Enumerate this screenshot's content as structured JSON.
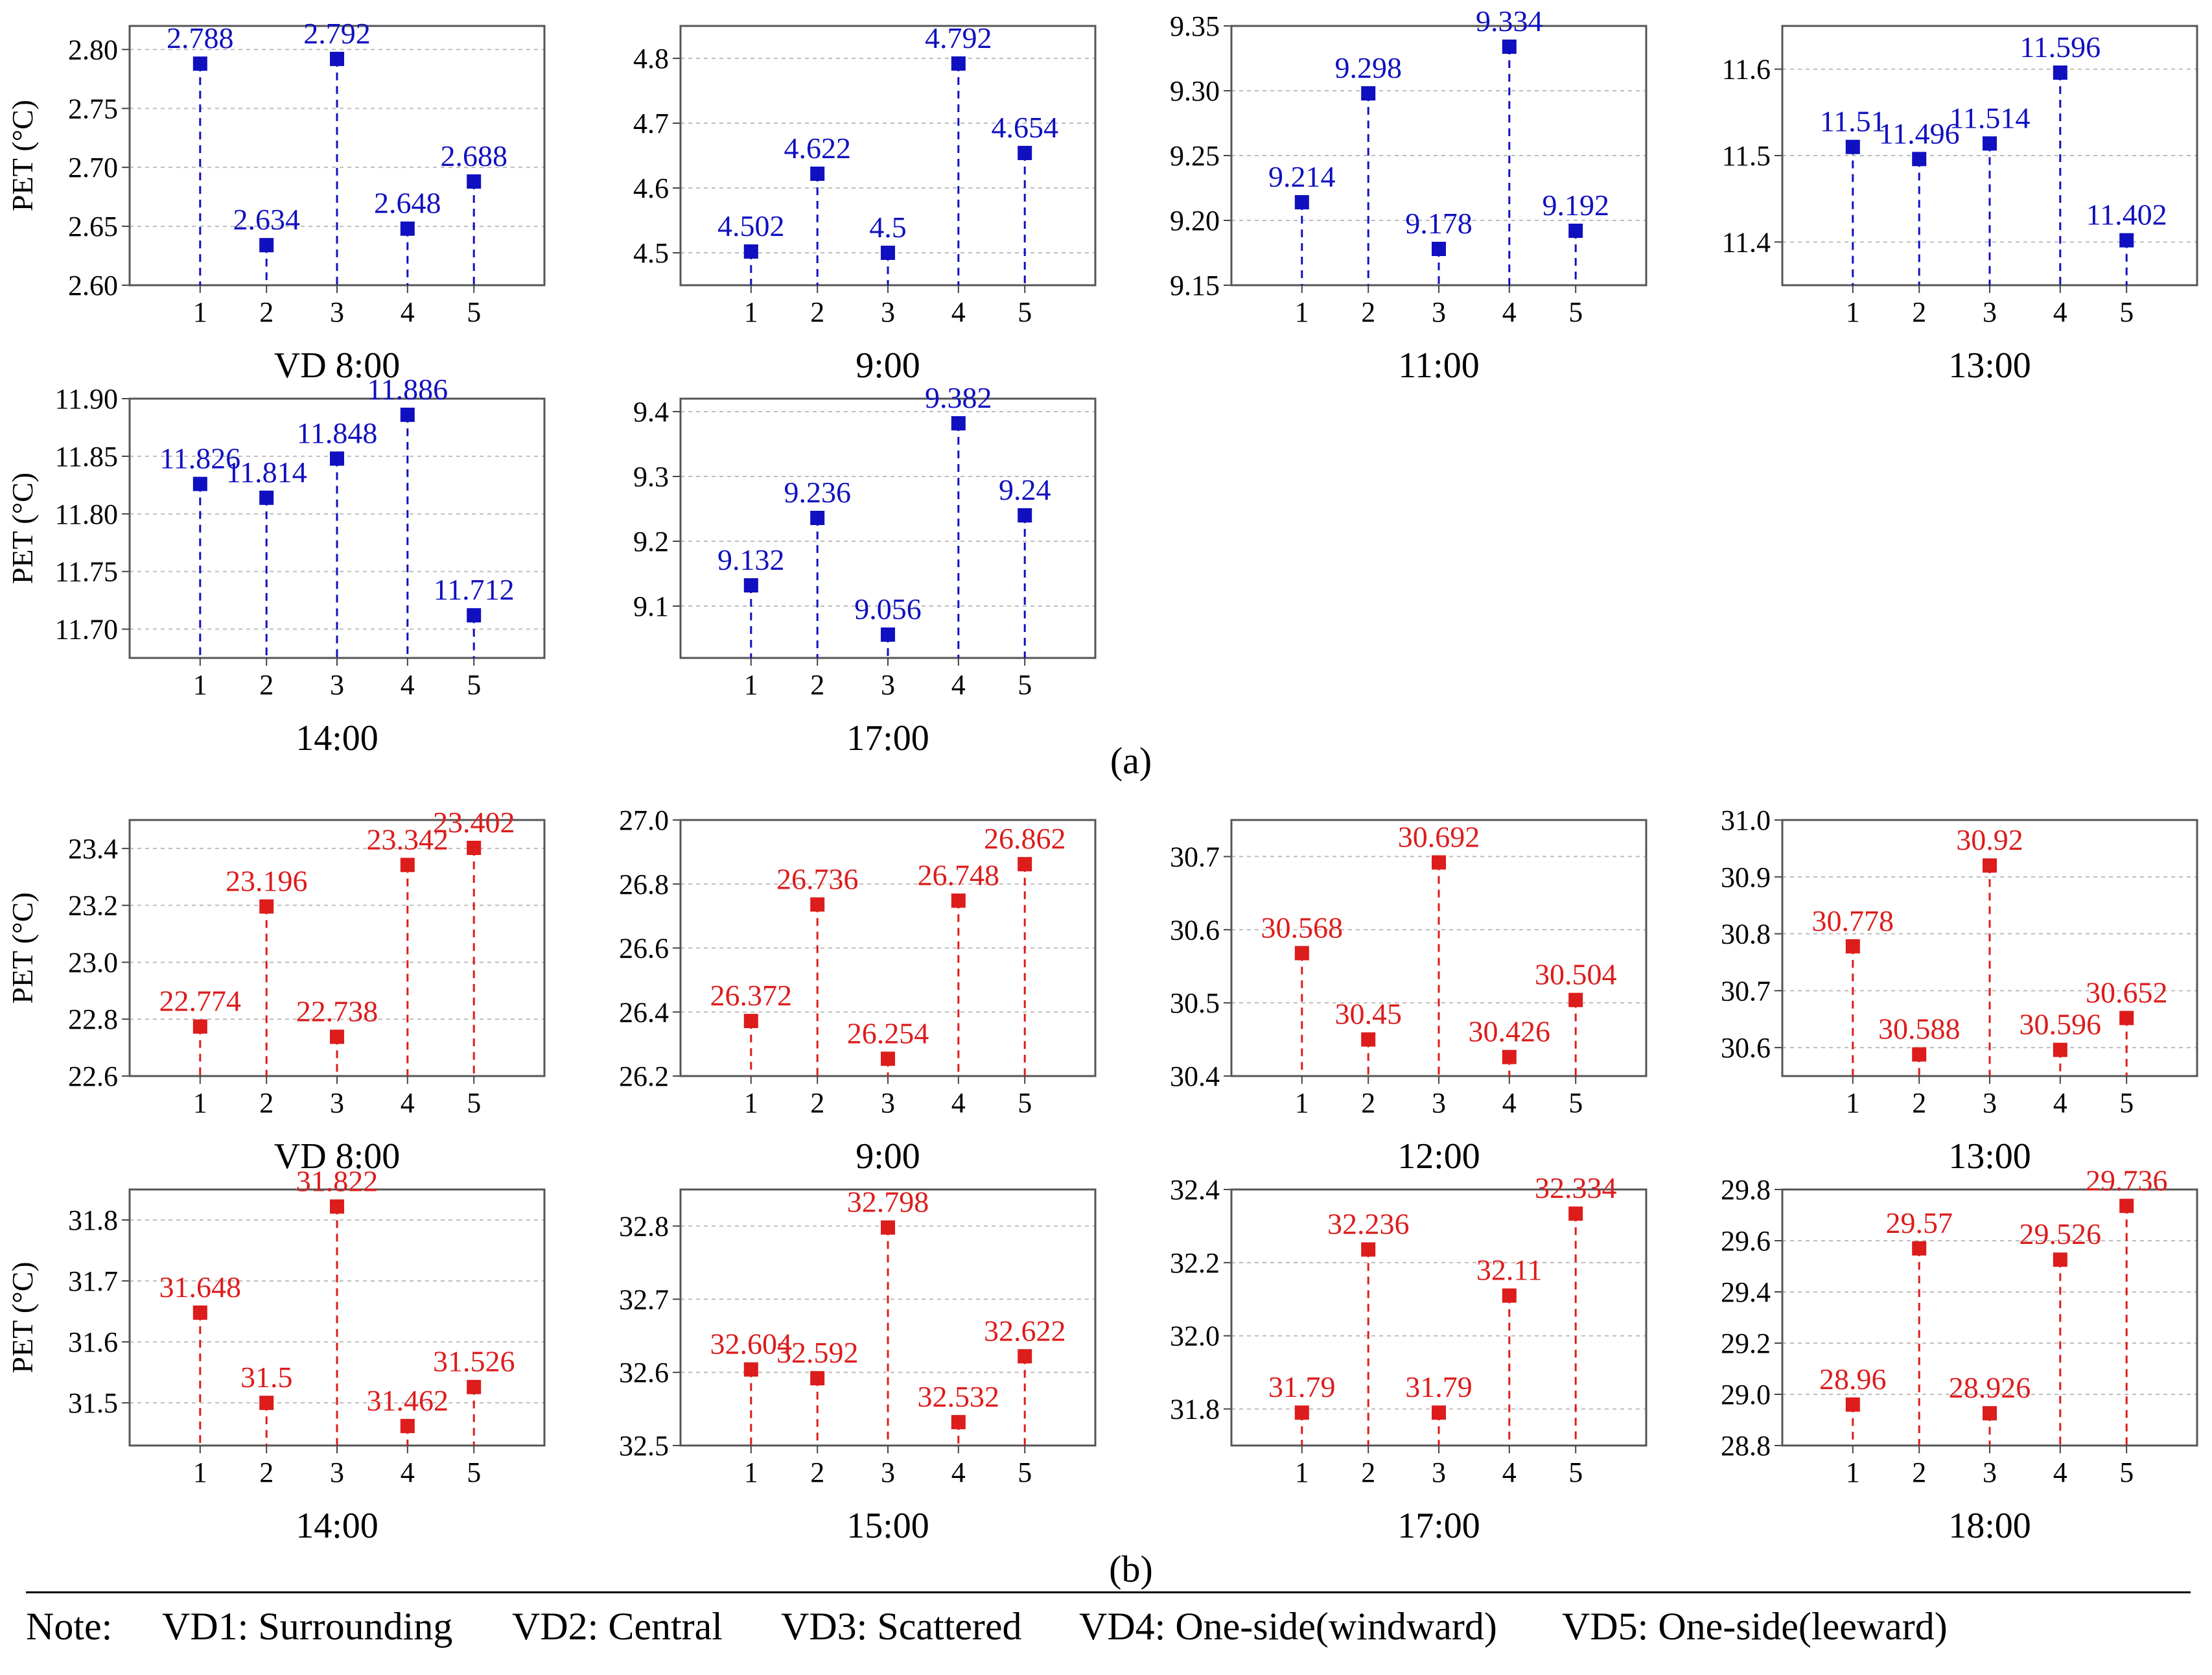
{
  "colors": {
    "group_a": "#1010c0",
    "group_b": "#dd1c1c",
    "axis": "#555555",
    "grid": "#bdbdbd"
  },
  "y_axis_label": "PET (°C)",
  "section_labels": [
    "(a)",
    "(b)"
  ],
  "note": {
    "prefix": "Note:",
    "items": [
      "VD1: Surrounding",
      "VD2: Central",
      "VD3: Scattered",
      "VD4: One-side(windward)",
      "VD5: One-side(leeward)"
    ]
  },
  "chart_data": [
    {
      "type": "scatter",
      "group": "a",
      "title": "VD 8:00",
      "categories": [
        "1",
        "2",
        "3",
        "4",
        "5"
      ],
      "values": [
        2.788,
        2.634,
        2.792,
        2.648,
        2.688
      ],
      "labels": [
        "2.788",
        "2.634",
        "2.792",
        "2.648",
        "2.688"
      ],
      "ylim": [
        2.6,
        2.82
      ],
      "yticks": [
        "2.60",
        "2.65",
        "2.70",
        "2.75",
        "2.80"
      ],
      "ylabel": "PET (°C)"
    },
    {
      "type": "scatter",
      "group": "a",
      "title": "9:00",
      "categories": [
        "1",
        "2",
        "3",
        "4",
        "5"
      ],
      "values": [
        4.502,
        4.622,
        4.5,
        4.792,
        4.654
      ],
      "labels": [
        "4.502",
        "4.622",
        "4.5",
        "4.792",
        "4.654"
      ],
      "ylim": [
        4.45,
        4.85
      ],
      "yticks": [
        "4.5",
        "4.6",
        "4.7",
        "4.8"
      ]
    },
    {
      "type": "scatter",
      "group": "a",
      "title": "11:00",
      "categories": [
        "1",
        "2",
        "3",
        "4",
        "5"
      ],
      "values": [
        9.214,
        9.298,
        9.178,
        9.334,
        9.192
      ],
      "labels": [
        "9.214",
        "9.298",
        "9.178",
        "9.334",
        "9.192"
      ],
      "ylim": [
        9.15,
        9.35
      ],
      "yticks": [
        "9.15",
        "9.20",
        "9.25",
        "9.30",
        "9.35"
      ]
    },
    {
      "type": "scatter",
      "group": "a",
      "title": "13:00",
      "categories": [
        "1",
        "2",
        "3",
        "4",
        "5"
      ],
      "values": [
        11.51,
        11.496,
        11.514,
        11.596,
        11.402
      ],
      "labels": [
        "11.51",
        "11.496",
        "11.514",
        "11.596",
        "11.402"
      ],
      "ylim": [
        11.35,
        11.65
      ],
      "yticks": [
        "11.4",
        "11.5",
        "11.6"
      ]
    },
    {
      "type": "scatter",
      "group": "a",
      "title": "14:00",
      "categories": [
        "1",
        "2",
        "3",
        "4",
        "5"
      ],
      "values": [
        11.826,
        11.814,
        11.848,
        11.886,
        11.712
      ],
      "labels": [
        "11.826",
        "11.814",
        "11.848",
        "11.886",
        "11.712"
      ],
      "ylim": [
        11.675,
        11.9
      ],
      "yticks": [
        "11.70",
        "11.75",
        "11.80",
        "11.85",
        "11.90"
      ],
      "ylabel": "PET (°C)"
    },
    {
      "type": "scatter",
      "group": "a",
      "title": "17:00",
      "categories": [
        "1",
        "2",
        "3",
        "4",
        "5"
      ],
      "values": [
        9.132,
        9.236,
        9.056,
        9.382,
        9.24
      ],
      "labels": [
        "9.132",
        "9.236",
        "9.056",
        "9.382",
        "9.24"
      ],
      "ylim": [
        9.02,
        9.42
      ],
      "yticks": [
        "9.1",
        "9.2",
        "9.3",
        "9.4"
      ]
    },
    {
      "type": "scatter",
      "group": "b",
      "title": "VD 8:00",
      "categories": [
        "1",
        "2",
        "3",
        "4",
        "5"
      ],
      "values": [
        22.774,
        23.196,
        22.738,
        23.342,
        23.402
      ],
      "labels": [
        "22.774",
        "23.196",
        "22.738",
        "23.342",
        "23.402"
      ],
      "ylim": [
        22.6,
        23.5
      ],
      "yticks": [
        "22.6",
        "22.8",
        "23.0",
        "23.2",
        "23.4"
      ],
      "ylabel": "PET (°C)"
    },
    {
      "type": "scatter",
      "group": "b",
      "title": "9:00",
      "categories": [
        "1",
        "2",
        "3",
        "4",
        "5"
      ],
      "values": [
        26.372,
        26.736,
        26.254,
        26.748,
        26.862
      ],
      "labels": [
        "26.372",
        "26.736",
        "26.254",
        "26.748",
        "26.862"
      ],
      "ylim": [
        26.2,
        27.0
      ],
      "yticks": [
        "26.2",
        "26.4",
        "26.6",
        "26.8",
        "27.0"
      ]
    },
    {
      "type": "scatter",
      "group": "b",
      "title": "12:00",
      "categories": [
        "1",
        "2",
        "3",
        "4",
        "5"
      ],
      "values": [
        30.568,
        30.45,
        30.692,
        30.426,
        30.504
      ],
      "labels": [
        "30.568",
        "30.45",
        "30.692",
        "30.426",
        "30.504"
      ],
      "ylim": [
        30.4,
        30.75
      ],
      "yticks": [
        "30.4",
        "30.5",
        "30.6",
        "30.7"
      ]
    },
    {
      "type": "scatter",
      "group": "b",
      "title": "13:00",
      "categories": [
        "1",
        "2",
        "3",
        "4",
        "5"
      ],
      "values": [
        30.778,
        30.588,
        30.92,
        30.596,
        30.652
      ],
      "labels": [
        "30.778",
        "30.588",
        "30.92",
        "30.596",
        "30.652"
      ],
      "ylim": [
        30.55,
        31.0
      ],
      "yticks": [
        "30.6",
        "30.7",
        "30.8",
        "30.9",
        "31.0"
      ]
    },
    {
      "type": "scatter",
      "group": "b",
      "title": "14:00",
      "categories": [
        "1",
        "2",
        "3",
        "4",
        "5"
      ],
      "values": [
        31.648,
        31.5,
        31.822,
        31.462,
        31.526
      ],
      "labels": [
        "31.648",
        "31.5",
        "31.822",
        "31.462",
        "31.526"
      ],
      "ylim": [
        31.43,
        31.85
      ],
      "yticks": [
        "31.5",
        "31.6",
        "31.7",
        "31.8"
      ],
      "ylabel": "PET (°C)"
    },
    {
      "type": "scatter",
      "group": "b",
      "title": "15:00",
      "categories": [
        "1",
        "2",
        "3",
        "4",
        "5"
      ],
      "values": [
        32.604,
        32.592,
        32.798,
        32.532,
        32.622
      ],
      "labels": [
        "32.604",
        "32.592",
        "32.798",
        "32.532",
        "32.622"
      ],
      "ylim": [
        32.5,
        32.85
      ],
      "yticks": [
        "32.5",
        "32.6",
        "32.7",
        "32.8"
      ]
    },
    {
      "type": "scatter",
      "group": "b",
      "title": "17:00",
      "categories": [
        "1",
        "2",
        "3",
        "4",
        "5"
      ],
      "values": [
        31.79,
        32.236,
        31.79,
        32.11,
        32.334
      ],
      "labels": [
        "31.79",
        "32.236",
        "31.79",
        "32.11",
        "32.334"
      ],
      "ylim": [
        31.7,
        32.4
      ],
      "yticks": [
        "31.8",
        "32.0",
        "32.2",
        "32.4"
      ]
    },
    {
      "type": "scatter",
      "group": "b",
      "title": "18:00",
      "categories": [
        "1",
        "2",
        "3",
        "4",
        "5"
      ],
      "values": [
        28.96,
        29.57,
        28.926,
        29.526,
        29.736
      ],
      "labels": [
        "28.96",
        "29.57",
        "28.926",
        "29.526",
        "29.736"
      ],
      "ylim": [
        28.8,
        29.8
      ],
      "yticks": [
        "28.8",
        "29.0",
        "29.2",
        "29.4",
        "29.6",
        "29.8"
      ]
    }
  ]
}
